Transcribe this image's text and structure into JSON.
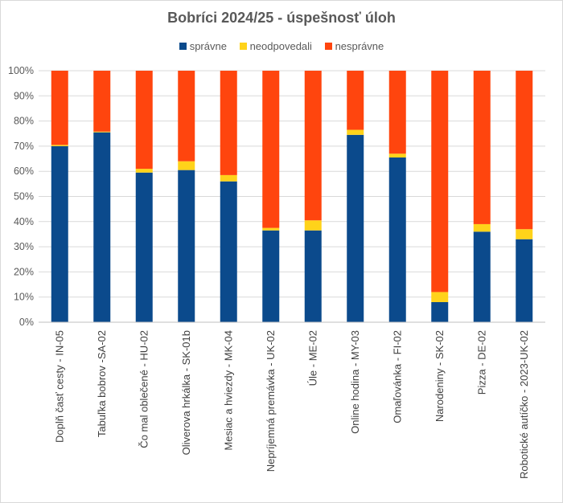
{
  "chart_data": {
    "type": "bar",
    "stacked": true,
    "percent_stacked": true,
    "title": "Bobríci 2024/25 - úspešnosť úloh",
    "categories": [
      "Doplň časť cesty - IN-05",
      "Tabuľka bobrov -SA-02",
      "Čo mal oblečené - HU-02",
      "Oliverova hrkálka - SK-01b",
      "Mesiac a hviezdy - MK-04",
      "Nepríjemná premávka - UK-02",
      "Úle - ME-02",
      "Online hodina - MY-03",
      "Omaľovánka - FI-02",
      "Narodeniny - SK-02",
      "Pizza - DE-02",
      "Robotické autíčko - 2023-UK-02"
    ],
    "series": [
      {
        "name": "správne",
        "color": "#0B4A8C",
        "values": [
          70,
          75.5,
          59.5,
          60.5,
          56,
          36.5,
          36.5,
          74.5,
          65.5,
          8,
          36,
          33
        ]
      },
      {
        "name": "neodpovedali",
        "color": "#FFD31A",
        "values": [
          0.5,
          0.3,
          1.5,
          3.5,
          2.5,
          1,
          4,
          2,
          1.5,
          4,
          3,
          4
        ]
      },
      {
        "name": "nesprávne",
        "color": "#FF450E",
        "values": [
          29.5,
          24.2,
          39,
          36,
          41.5,
          62.5,
          59.5,
          23.5,
          33,
          88,
          61,
          63
        ]
      }
    ],
    "ylim": [
      0,
      100
    ],
    "yticks": [
      "0%",
      "10%",
      "20%",
      "30%",
      "40%",
      "50%",
      "60%",
      "70%",
      "80%",
      "90%",
      "100%"
    ],
    "grid": true,
    "legend": "top"
  }
}
